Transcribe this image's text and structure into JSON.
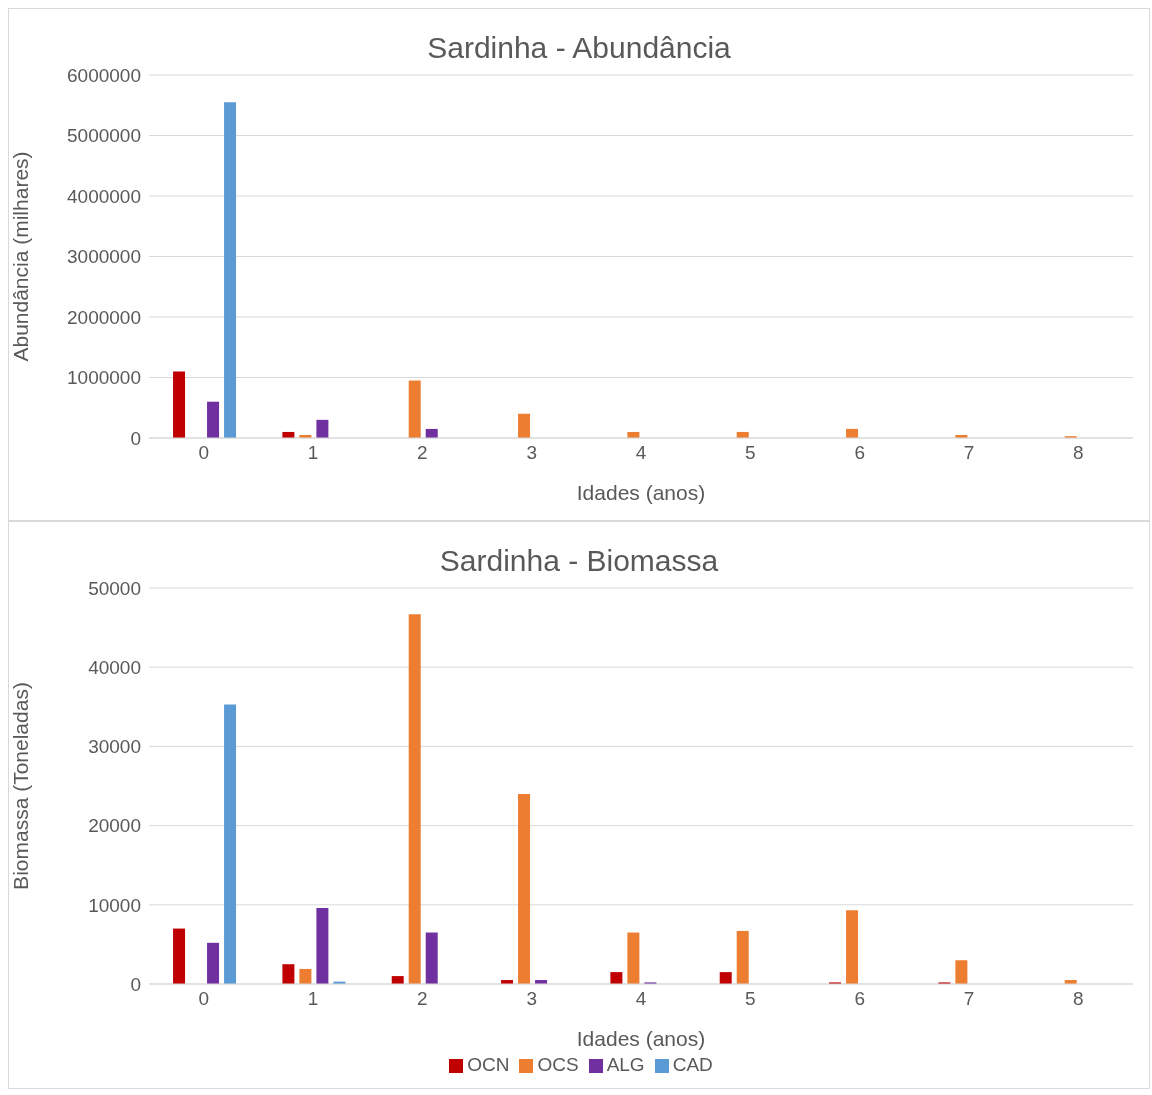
{
  "chart_data": [
    {
      "type": "bar",
      "title": "Sardinha - Abundância",
      "xlabel": "Idades (anos)",
      "ylabel": "Abundância (milhares)",
      "categories": [
        "0",
        "1",
        "2",
        "3",
        "4",
        "5",
        "6",
        "7",
        "8"
      ],
      "series": [
        {
          "color": "#c00000",
          "values": [
            1100000,
            100000,
            null,
            null,
            null,
            null,
            null,
            null,
            null
          ]
        },
        {
          "color": "#ed7d31",
          "values": [
            null,
            50000,
            950000,
            400000,
            100000,
            100000,
            150000,
            50000,
            30000
          ]
        },
        {
          "color": "#7030a0",
          "values": [
            600000,
            300000,
            150000,
            null,
            null,
            null,
            null,
            null,
            null
          ]
        },
        {
          "color": "#5b9bd5",
          "values": [
            5550000,
            null,
            null,
            null,
            null,
            null,
            null,
            null,
            null
          ]
        }
      ],
      "ylim": [
        0,
        6000000
      ],
      "yticks": [
        0,
        1000000,
        2000000,
        3000000,
        4000000,
        5000000,
        6000000
      ],
      "grid": "y",
      "legend": false
    },
    {
      "type": "bar",
      "title": "Sardinha - Biomassa",
      "xlabel": "Idades (anos)",
      "ylabel": "Biomassa  (Toneladas)",
      "categories": [
        "0",
        "1",
        "2",
        "3",
        "4",
        "5",
        "6",
        "7",
        "8"
      ],
      "series": [
        {
          "name": "OCN",
          "color": "#c00000",
          "values": [
            7000,
            2500,
            1000,
            500,
            1500,
            1500,
            200,
            200,
            null
          ]
        },
        {
          "name": "OCS",
          "color": "#ed7d31",
          "values": [
            null,
            1900,
            46700,
            24000,
            6500,
            6700,
            9300,
            3000,
            500
          ]
        },
        {
          "name": "ALG",
          "color": "#7030a0",
          "values": [
            5200,
            9600,
            6500,
            500,
            200,
            null,
            null,
            null,
            null
          ]
        },
        {
          "name": "CAD",
          "color": "#5b9bd5",
          "values": [
            35300,
            300,
            null,
            null,
            null,
            null,
            null,
            null,
            null
          ]
        }
      ],
      "ylim": [
        0,
        50000
      ],
      "yticks": [
        0,
        10000,
        20000,
        30000,
        40000,
        50000
      ],
      "grid": "y",
      "legend": "bottom"
    }
  ]
}
